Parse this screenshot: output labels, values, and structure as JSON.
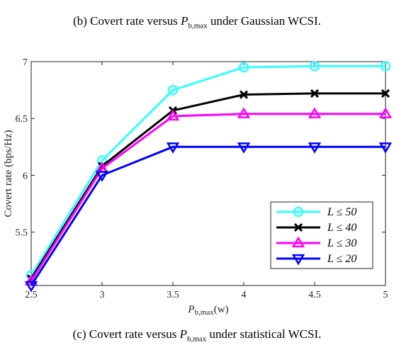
{
  "caption_top": "(b) Covert rate versus P_b,max under Gaussian WCSI.",
  "caption_bottom": "(c) Covert rate versus P_b,max under statistical WCSI.",
  "chart_data": {
    "type": "line",
    "title": "",
    "xlabel": "P_b,max(w)",
    "ylabel": "Covert rate (bps/Hz)",
    "xlim": [
      2.5,
      5
    ],
    "ylim": [
      5.03,
      7
    ],
    "grid": false,
    "legend_position": "bottom-right",
    "x": [
      2.5,
      3,
      3.5,
      4,
      4.5,
      5
    ],
    "x_tick_labels": [
      "2.5",
      "3",
      "3.5",
      "4",
      "4.5",
      "5"
    ],
    "y_ticks": [
      5.5,
      6,
      6.5,
      7
    ],
    "y_tick_labels": [
      "5.5",
      "6",
      "6.5",
      "7"
    ],
    "series": [
      {
        "name": "L ≤ 50",
        "color": "#33ffff",
        "marker": "circle",
        "values": [
          5.12,
          6.13,
          6.75,
          6.95,
          6.96,
          6.96
        ]
      },
      {
        "name": "L ≤ 40",
        "color": "#000000",
        "marker": "x",
        "values": [
          5.09,
          6.08,
          6.57,
          6.71,
          6.72,
          6.72
        ]
      },
      {
        "name": "L ≤ 30",
        "color": "#ff00ff",
        "marker": "triangle-up",
        "values": [
          5.07,
          6.06,
          6.52,
          6.54,
          6.54,
          6.54
        ]
      },
      {
        "name": "L ≤ 20",
        "color": "#0000ff",
        "marker": "triangle-down",
        "values": [
          5.03,
          6.0,
          6.25,
          6.25,
          6.25,
          6.25
        ]
      }
    ]
  }
}
